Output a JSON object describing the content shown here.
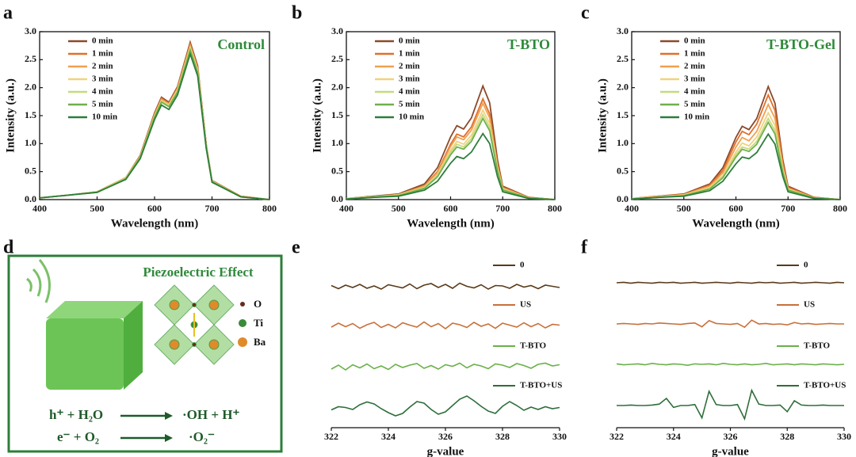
{
  "chart_data": [
    {
      "type": "line",
      "label": "a",
      "annotation": "Control",
      "xlabel": "Wavelength (nm)",
      "ylabel": "Intensity (a.u.)",
      "xlim": [
        400,
        800
      ],
      "xticks": [
        400,
        500,
        600,
        700,
        800
      ],
      "ylim": [
        0,
        3
      ],
      "yticks": [
        {
          "value": 0,
          "label": "0.0"
        },
        {
          "value": 0.5,
          "label": "0.5"
        },
        {
          "value": 1,
          "label": "1.0"
        },
        {
          "value": 1.5,
          "label": "1.5"
        },
        {
          "value": 2,
          "label": "2.0"
        },
        {
          "value": 2.5,
          "label": "2.5"
        },
        {
          "value": 3,
          "label": "3.0"
        }
      ],
      "x": [
        400,
        450,
        500,
        550,
        575,
        600,
        612,
        625,
        640,
        662,
        675,
        690,
        700,
        750,
        800
      ],
      "series": [
        {
          "name": "0 min",
          "color": "#8b4a2b",
          "values": [
            0.03,
            0.08,
            0.14,
            0.39,
            0.79,
            1.55,
            1.83,
            1.74,
            2.02,
            2.81,
            2.39,
            0.98,
            0.34,
            0.06,
            0
          ]
        },
        {
          "name": "1 min",
          "color": "#e0702a",
          "values": [
            0.03,
            0.08,
            0.14,
            0.39,
            0.78,
            1.53,
            1.81,
            1.72,
            2.0,
            2.78,
            2.36,
            0.97,
            0.33,
            0.06,
            0
          ]
        },
        {
          "name": "2 min",
          "color": "#f0a050",
          "values": [
            0.03,
            0.08,
            0.14,
            0.39,
            0.77,
            1.51,
            1.79,
            1.71,
            1.98,
            2.75,
            2.34,
            0.96,
            0.33,
            0.06,
            0
          ]
        },
        {
          "name": "3 min",
          "color": "#f2d27e",
          "values": [
            0.03,
            0.08,
            0.14,
            0.38,
            0.76,
            1.5,
            1.77,
            1.69,
            1.96,
            2.72,
            2.31,
            0.95,
            0.33,
            0.05,
            0
          ]
        },
        {
          "name": "4 min",
          "color": "#c5da7e",
          "values": [
            0.03,
            0.08,
            0.14,
            0.38,
            0.76,
            1.49,
            1.76,
            1.67,
            1.94,
            2.7,
            2.3,
            0.95,
            0.32,
            0.05,
            0
          ]
        },
        {
          "name": "5 min",
          "color": "#6fb04a",
          "values": [
            0.03,
            0.08,
            0.13,
            0.37,
            0.75,
            1.47,
            1.74,
            1.66,
            1.92,
            2.67,
            2.27,
            0.93,
            0.32,
            0.05,
            0
          ]
        },
        {
          "name": "10 min",
          "color": "#2e7d3a",
          "values": [
            0.03,
            0.08,
            0.13,
            0.36,
            0.73,
            1.43,
            1.69,
            1.61,
            1.87,
            2.6,
            2.21,
            0.91,
            0.31,
            0.05,
            0
          ]
        }
      ]
    },
    {
      "type": "line",
      "label": "b",
      "annotation": "T-BTO",
      "xlabel": "Wavelength (nm)",
      "ylabel": "Intensity (a.u.)",
      "xlim": [
        400,
        800
      ],
      "xticks": [
        400,
        500,
        600,
        700,
        800
      ],
      "ylim": [
        0,
        3
      ],
      "yticks": [
        {
          "value": 0,
          "label": "0.0"
        },
        {
          "value": 0.5,
          "label": "0.5"
        },
        {
          "value": 1,
          "label": "1.0"
        },
        {
          "value": 1.5,
          "label": "1.5"
        },
        {
          "value": 2,
          "label": "2.0"
        },
        {
          "value": 2.5,
          "label": "2.5"
        },
        {
          "value": 3,
          "label": "3.0"
        }
      ],
      "x": [
        400,
        450,
        500,
        550,
        575,
        600,
        612,
        625,
        640,
        662,
        675,
        690,
        700,
        750,
        800
      ],
      "series": [
        {
          "name": "0 min",
          "color": "#8b4a2b",
          "values": [
            0.02,
            0.06,
            0.1,
            0.28,
            0.57,
            1.12,
            1.32,
            1.26,
            1.46,
            2.03,
            1.73,
            0.71,
            0.24,
            0.04,
            0
          ]
        },
        {
          "name": "1 min",
          "color": "#e0702a",
          "values": [
            0.02,
            0.05,
            0.09,
            0.25,
            0.5,
            0.99,
            1.17,
            1.12,
            1.3,
            1.8,
            1.53,
            0.63,
            0.22,
            0.04,
            0
          ]
        },
        {
          "name": "2 min",
          "color": "#f0a050",
          "values": [
            0.02,
            0.05,
            0.09,
            0.24,
            0.48,
            0.95,
            1.12,
            1.07,
            1.24,
            1.72,
            1.46,
            0.6,
            0.21,
            0.03,
            0
          ]
        },
        {
          "name": "3 min",
          "color": "#f2d27e",
          "values": [
            0.02,
            0.05,
            0.08,
            0.22,
            0.45,
            0.88,
            1.04,
            0.99,
            1.15,
            1.6,
            1.36,
            0.56,
            0.19,
            0.03,
            0
          ]
        },
        {
          "name": "4 min",
          "color": "#c5da7e",
          "values": [
            0.02,
            0.05,
            0.08,
            0.21,
            0.43,
            0.84,
            0.99,
            0.94,
            1.09,
            1.52,
            1.29,
            0.53,
            0.18,
            0.03,
            0
          ]
        },
        {
          "name": "5 min",
          "color": "#6fb04a",
          "values": [
            0.01,
            0.04,
            0.07,
            0.2,
            0.41,
            0.8,
            0.94,
            0.9,
            1.04,
            1.45,
            1.23,
            0.51,
            0.17,
            0.03,
            0
          ]
        },
        {
          "name": "10 min",
          "color": "#2e7d3a",
          "values": [
            0.01,
            0.04,
            0.06,
            0.17,
            0.33,
            0.65,
            0.77,
            0.73,
            0.85,
            1.18,
            1.0,
            0.41,
            0.14,
            0.02,
            0
          ]
        }
      ]
    },
    {
      "type": "line",
      "label": "c",
      "annotation": "T-BTO-Gel",
      "xlabel": "Wavelength (nm)",
      "ylabel": "Intensity (a.u.)",
      "xlim": [
        400,
        800
      ],
      "xticks": [
        400,
        500,
        600,
        700,
        800
      ],
      "ylim": [
        0,
        3
      ],
      "yticks": [
        {
          "value": 0,
          "label": "0.0"
        },
        {
          "value": 0.5,
          "label": "0.5"
        },
        {
          "value": 1,
          "label": "1.0"
        },
        {
          "value": 1.5,
          "label": "1.5"
        },
        {
          "value": 2,
          "label": "2.0"
        },
        {
          "value": 2.5,
          "label": "2.5"
        },
        {
          "value": 3,
          "label": "3.0"
        }
      ],
      "x": [
        400,
        450,
        500,
        550,
        575,
        600,
        612,
        625,
        640,
        662,
        675,
        690,
        700,
        750,
        800
      ],
      "series": [
        {
          "name": "0 min",
          "color": "#8b4a2b",
          "values": [
            0.02,
            0.06,
            0.1,
            0.28,
            0.57,
            1.11,
            1.31,
            1.25,
            1.45,
            2.02,
            1.72,
            0.71,
            0.24,
            0.04,
            0
          ]
        },
        {
          "name": "1 min",
          "color": "#e0702a",
          "values": [
            0.02,
            0.06,
            0.09,
            0.26,
            0.52,
            1.03,
            1.22,
            1.16,
            1.35,
            1.87,
            1.59,
            0.65,
            0.22,
            0.04,
            0
          ]
        },
        {
          "name": "2 min",
          "color": "#f0a050",
          "values": [
            0.02,
            0.05,
            0.09,
            0.24,
            0.48,
            0.94,
            1.11,
            1.05,
            1.22,
            1.7,
            1.45,
            0.6,
            0.2,
            0.03,
            0
          ]
        },
        {
          "name": "3 min",
          "color": "#f2d27e",
          "values": [
            0.02,
            0.05,
            0.08,
            0.22,
            0.43,
            0.85,
            1.01,
            0.96,
            1.12,
            1.55,
            1.32,
            0.54,
            0.19,
            0.03,
            0
          ]
        },
        {
          "name": "4 min",
          "color": "#c5da7e",
          "values": [
            0.01,
            0.04,
            0.07,
            0.2,
            0.41,
            0.8,
            0.94,
            0.9,
            1.04,
            1.45,
            1.23,
            0.51,
            0.17,
            0.03,
            0
          ]
        },
        {
          "name": "5 min",
          "color": "#6fb04a",
          "values": [
            0.01,
            0.04,
            0.07,
            0.19,
            0.39,
            0.76,
            0.9,
            0.86,
            0.99,
            1.38,
            1.17,
            0.48,
            0.17,
            0.03,
            0
          ]
        },
        {
          "name": "10 min",
          "color": "#2e7d3a",
          "values": [
            0.01,
            0.04,
            0.06,
            0.16,
            0.33,
            0.64,
            0.76,
            0.73,
            0.84,
            1.17,
            0.99,
            0.41,
            0.14,
            0.02,
            0
          ]
        }
      ]
    },
    {
      "type": "line",
      "label": "e",
      "xlabel": "g-value",
      "xlim": [
        322,
        330
      ],
      "xticks": [
        322,
        324,
        326,
        328,
        330
      ],
      "x": [
        322,
        322.25,
        322.5,
        322.75,
        323,
        323.25,
        323.5,
        323.75,
        324,
        324.25,
        324.5,
        324.75,
        325,
        325.25,
        325.5,
        325.75,
        326,
        326.25,
        326.5,
        326.75,
        327,
        327.25,
        327.5,
        327.75,
        328,
        328.25,
        328.5,
        328.75,
        329,
        329.25,
        329.5,
        329.75,
        330
      ],
      "series": [
        {
          "name": "0",
          "color": "#5a3a1a",
          "values": [
            0.3,
            -0.5,
            0.4,
            -0.2,
            0.6,
            -0.4,
            0.2,
            -0.6,
            0.5,
            0.1,
            -0.3,
            0.7,
            -0.5,
            0.4,
            0.8,
            -0.2,
            0.6,
            -0.4,
            0.9,
            0.1,
            -0.3,
            0.5,
            -0.6,
            0.3,
            0.2,
            -0.4,
            0.6,
            -0.1,
            0.3,
            -0.5,
            0.4,
            0.1,
            -0.2
          ]
        },
        {
          "name": "US",
          "color": "#c8703a",
          "values": [
            -0.4,
            0.6,
            -0.3,
            0.5,
            -0.7,
            0.2,
            0.8,
            -0.5,
            0.3,
            -0.6,
            0.7,
            0.1,
            -0.4,
            0.9,
            -0.3,
            0.5,
            -0.8,
            0.6,
            0.2,
            -0.5,
            0.8,
            -0.2,
            0.4,
            -0.7,
            0.6,
            0.1,
            -0.4,
            0.7,
            -0.3,
            0.5,
            -0.6,
            0.3,
            0.1
          ]
        },
        {
          "name": "T-BTO",
          "color": "#6ab04a",
          "values": [
            -0.6,
            0.4,
            -0.8,
            0.5,
            -0.3,
            0.7,
            -0.5,
            0.2,
            -0.7,
            0.6,
            -0.2,
            0.4,
            0.8,
            -0.4,
            0.3,
            -0.6,
            0.5,
            0.1,
            0.9,
            -0.3,
            0.6,
            0.2,
            -0.5,
            0.7,
            0.4,
            -0.2,
            0.8,
            0.3,
            -0.4,
            0.6,
            0.9,
            0.2,
            0.5
          ]
        },
        {
          "name": "T-BTO+US",
          "color": "#2e6e3a",
          "values": [
            -0.5,
            0.3,
            0.1,
            -0.4,
            0.8,
            1.5,
            1.0,
            -0.2,
            -1.2,
            -2.0,
            -1.4,
            0.2,
            1.6,
            1.2,
            -0.4,
            -1.6,
            -1.0,
            0.6,
            2.2,
            3.0,
            1.8,
            0.4,
            -0.8,
            -1.4,
            0.4,
            1.6,
            0.6,
            -0.6,
            0.2,
            -0.4,
            0.3,
            -0.2,
            0.1
          ]
        }
      ]
    },
    {
      "type": "line",
      "label": "f",
      "xlabel": "g-value",
      "xlim": [
        322,
        330
      ],
      "xticks": [
        322,
        324,
        326,
        328,
        330
      ],
      "x": [
        322,
        322.25,
        322.5,
        322.75,
        323,
        323.25,
        323.5,
        323.75,
        324,
        324.25,
        324.5,
        324.75,
        325,
        325.25,
        325.5,
        325.75,
        326,
        326.25,
        326.5,
        326.75,
        327,
        327.25,
        327.5,
        327.75,
        328,
        328.25,
        328.5,
        328.75,
        329,
        329.25,
        329.5,
        329.75,
        330
      ],
      "series": [
        {
          "name": "0",
          "color": "#5a3a1a",
          "values": [
            0,
            0.1,
            -0.1,
            0.1,
            0,
            -0.1,
            0.1,
            0,
            0.1,
            -0.1,
            0,
            0.1,
            -0.1,
            0,
            0.1,
            0,
            -0.1,
            0.1,
            0,
            -0.1,
            0.1,
            0,
            0.1,
            -0.1,
            0,
            0.1,
            -0.1,
            0,
            0.1,
            0,
            -0.1,
            0.1,
            0
          ]
        },
        {
          "name": "US",
          "color": "#c8703a",
          "values": [
            0,
            0.1,
            0,
            -0.1,
            0.1,
            0,
            0.2,
            0.1,
            0,
            -0.1,
            0.1,
            0.2,
            -0.6,
            0.7,
            0.1,
            0,
            -0.1,
            0.1,
            -0.7,
            0.8,
            0,
            0.1,
            -0.1,
            0,
            -0.2,
            0.3,
            0,
            0.1,
            -0.1,
            0,
            0.1,
            0,
            0
          ]
        },
        {
          "name": "T-BTO",
          "color": "#6ab04a",
          "values": [
            0.1,
            -0.1,
            0,
            0.1,
            -0.1,
            0.2,
            0,
            -0.1,
            0.1,
            0,
            -0.2,
            0.1,
            0,
            0.1,
            -0.1,
            0.2,
            0,
            -0.1,
            0.1,
            -0.1,
            0,
            0.2,
            -0.1,
            0,
            0.1,
            -0.1,
            0.1,
            0,
            -0.1,
            0.1,
            0,
            -0.1,
            0
          ]
        },
        {
          "name": "T-BTO+US",
          "color": "#2e6e3a",
          "values": [
            0,
            0,
            0.1,
            0,
            0,
            0.1,
            0.3,
            1.5,
            -0.4,
            0,
            0,
            0.2,
            -2.6,
            3.0,
            0.2,
            0,
            0,
            0.2,
            -2.8,
            3.2,
            0.3,
            0,
            0,
            0.1,
            -1.3,
            1.0,
            0.1,
            0,
            0,
            0.1,
            0,
            0,
            0
          ]
        }
      ]
    }
  ],
  "diagram": {
    "label": "d",
    "title": "Piezoelectric Effect",
    "legend": [
      "O",
      "Ti",
      "Ba"
    ],
    "equations": [
      {
        "left": "h⁺ + H₂O",
        "right": "·OH + H⁺"
      },
      {
        "left": "e⁻ + O₂",
        "right": "·O₂⁻"
      }
    ]
  }
}
